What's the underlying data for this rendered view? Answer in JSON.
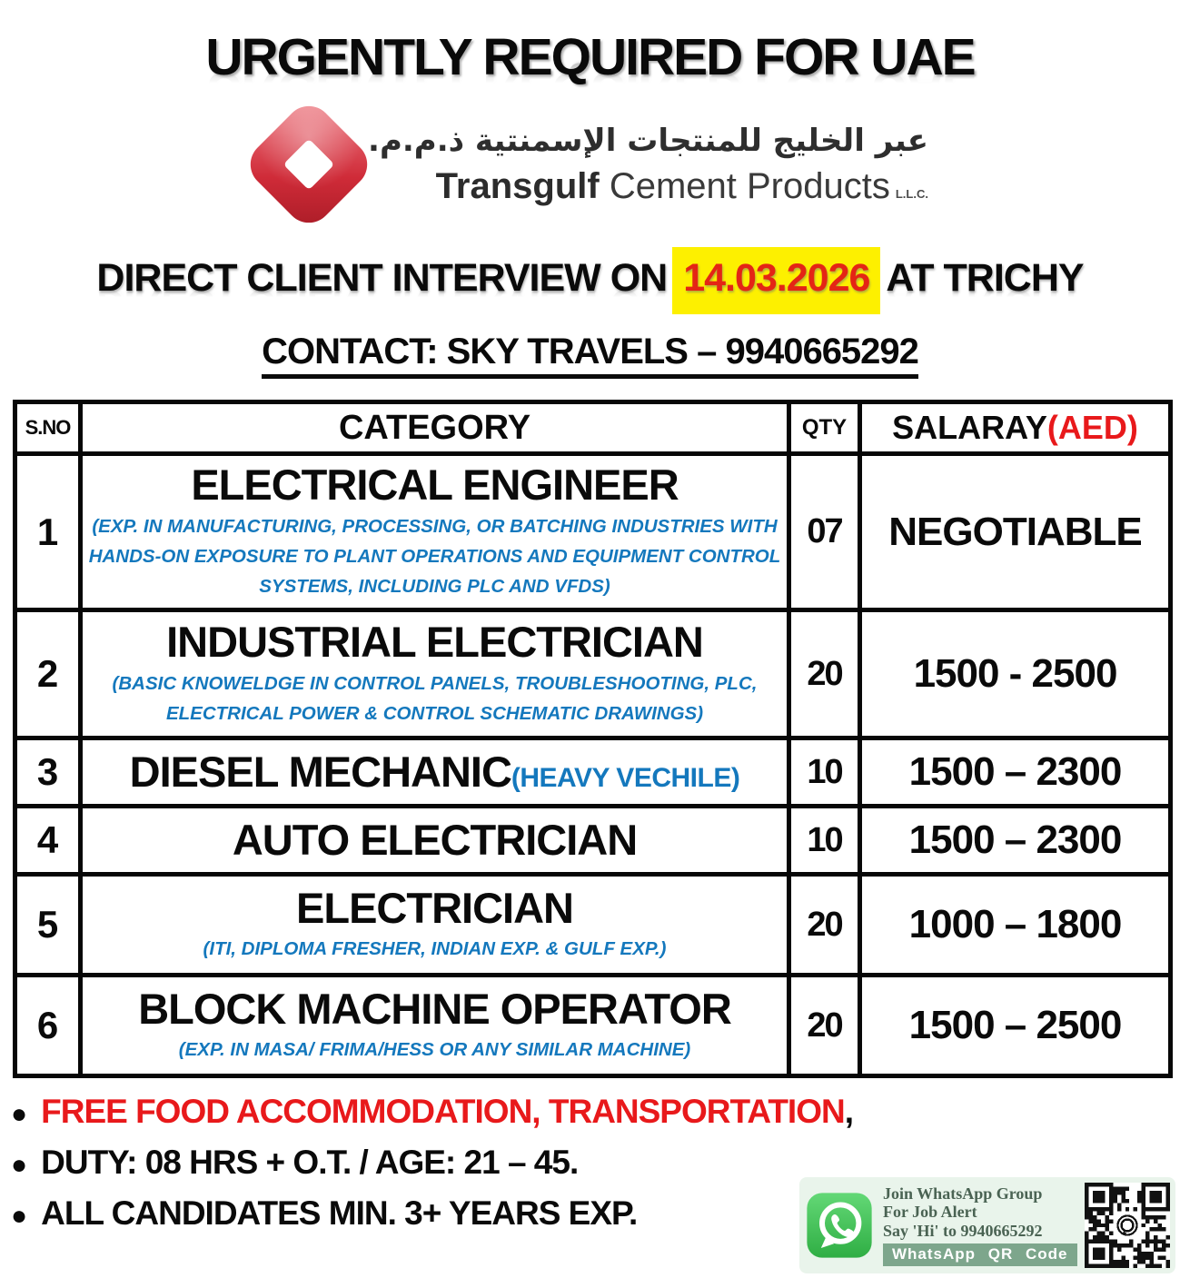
{
  "header": {
    "title": "URGENTLY REQUIRED FOR UAE",
    "logo": {
      "arabic": "عبر الخليج للمنتجات الإسمنتية ذ.م.م.",
      "name_bold": "Transgulf",
      "name_rest": " Cement Products",
      "suffix": "L.L.C."
    },
    "interview": {
      "prefix": "DIRECT CLIENT INTERVIEW ON",
      "date": "14.03.2026",
      "suffix": "AT TRICHY"
    },
    "contact": "CONTACT: SKY TRAVELS – 9940665292"
  },
  "table": {
    "headers": {
      "sno": "S.NO",
      "category": "CATEGORY",
      "qty": "QTY",
      "salary": "SALARAY",
      "salary_unit": "(AED)"
    },
    "rows": [
      {
        "sno": "1",
        "title": "ELECTRICAL ENGINEER",
        "subtitle": "(EXP. IN MANUFACTURING, PROCESSING, OR BATCHING INDUSTRIES WITH HANDS-ON EXPOSURE TO PLANT OPERATIONS AND EQUIPMENT CONTROL SYSTEMS, INCLUDING PLC AND VFDS)",
        "qty": "07",
        "salary": "NEGOTIABLE"
      },
      {
        "sno": "2",
        "title": "INDUSTRIAL ELECTRICIAN",
        "subtitle": "(BASIC KNOWELDGE IN CONTROL PANELS, TROUBLESHOOTING, PLC, ELECTRICAL POWER & CONTROL SCHEMATIC DRAWINGS)",
        "qty": "20",
        "salary": "1500 - 2500"
      },
      {
        "sno": "3",
        "title": "DIESEL MECHANIC",
        "subtitle_inline": "(HEAVY VECHILE)",
        "qty": "10",
        "salary": "1500 – 2300"
      },
      {
        "sno": "4",
        "title": "AUTO ELECTRICIAN",
        "qty": "10",
        "salary": "1500 – 2300"
      },
      {
        "sno": "5",
        "title": "ELECTRICIAN",
        "subtitle": "(ITI, DIPLOMA FRESHER, INDIAN EXP. & GULF EXP.)",
        "qty": "20",
        "salary": "1000 – 1800"
      },
      {
        "sno": "6",
        "title": "BLOCK MACHINE OPERATOR",
        "subtitle": "(EXP. IN MASA/ FRIMA/HESS OR ANY SIMILAR MACHINE)",
        "qty": "20",
        "salary": "1500 – 2500"
      }
    ]
  },
  "notes": [
    {
      "parts": [
        {
          "text": "FREE FOOD ACCOMMODATION, TRANSPORTATION",
          "color": "#e8191b"
        },
        {
          "text": ",",
          "color": "#0a0a0a"
        }
      ]
    },
    {
      "parts": [
        {
          "text": "DUTY: 08 HRS + O.T. / AGE: 21 – 45.",
          "color": "#0a0a0a"
        }
      ]
    },
    {
      "parts": [
        {
          "text": "ALL CANDIDATES MIN. 3+ YEARS EXP.",
          "color": "#0a0a0a"
        }
      ]
    }
  ],
  "whatsapp": {
    "line1": "Join WhatsApp Group",
    "line2": "For Job Alert",
    "line3": "Say 'Hi' to 9940665292",
    "banner": "WhatsApp QR Code",
    "qr_label": "whatsapp-qr-code"
  },
  "colors": {
    "highlight_yellow": "#fdf000",
    "date_red": "#e42515",
    "accent_red": "#e8191b",
    "subtitle_blue": "#1478bd",
    "logo_red": "#cf2b38",
    "whatsapp_green": "#3fba55",
    "banner_green": "#7da68c"
  }
}
